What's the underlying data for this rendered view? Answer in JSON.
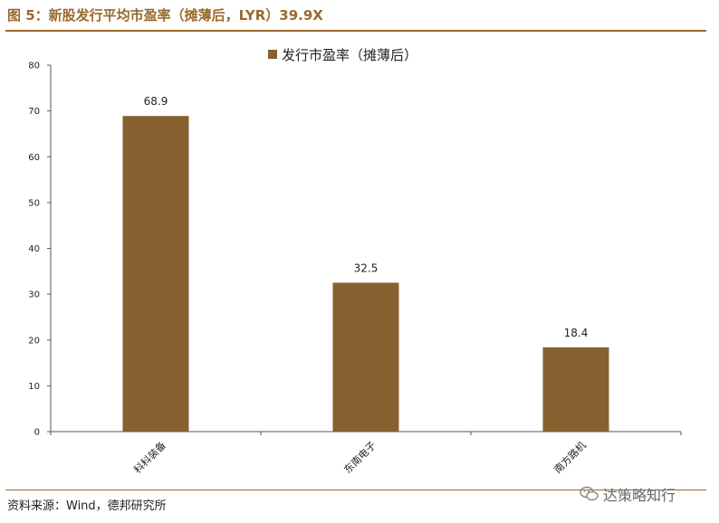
{
  "figure": {
    "title": "图 5：新股发行平均市盈率（摊薄后，LYR）39.9X",
    "source": "资料来源：Wind，德邦研究所",
    "watermark": "达策略知行"
  },
  "colors": {
    "accent": "#9a6a2e",
    "bar": "#86602f"
  },
  "chart_data": {
    "type": "bar",
    "categories": [
      "科科装备",
      "东南电子",
      "南方路机"
    ],
    "series": [
      {
        "name": "发行市盈率（摊薄后）",
        "values": [
          68.9,
          32.5,
          18.4
        ]
      }
    ],
    "data_labels": [
      "68.9",
      "32.5",
      "18.4"
    ],
    "ylim": [
      0,
      80
    ],
    "yticks": [
      0,
      10,
      20,
      30,
      40,
      50,
      60,
      70,
      80
    ],
    "grid": false,
    "legend_position": "top-center"
  }
}
